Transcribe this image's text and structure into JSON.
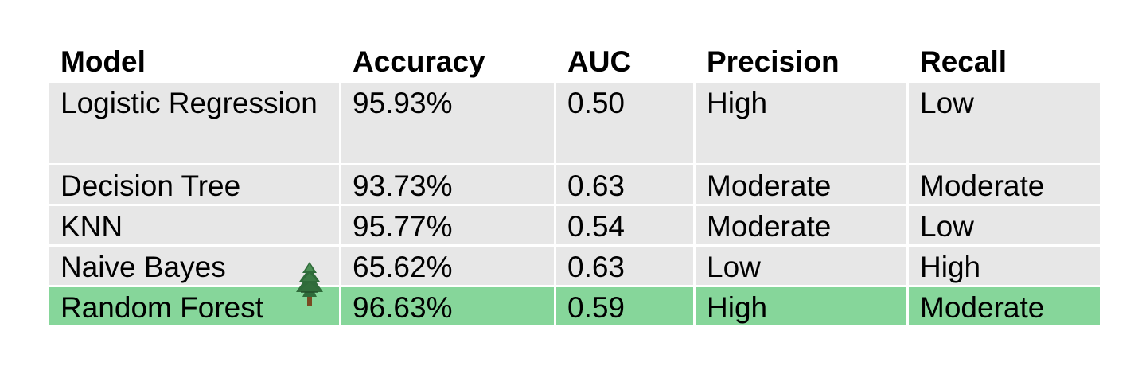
{
  "table": {
    "headers": [
      "Model",
      "Accuracy",
      "AUC",
      "Precision",
      "Recall"
    ],
    "rows": [
      {
        "model": "Logistic Regression",
        "accuracy": "95.93%",
        "auc": "0.50",
        "precision": "High",
        "recall": "Low"
      },
      {
        "model": "Decision Tree",
        "accuracy": "93.73%",
        "auc": "0.63",
        "precision": "Moderate",
        "recall": "Moderate"
      },
      {
        "model": "KNN",
        "accuracy": "95.77%",
        "auc": "0.54",
        "precision": "Moderate",
        "recall": "Low"
      },
      {
        "model": "Naive Bayes",
        "accuracy": "65.62%",
        "auc": "0.63",
        "precision": "Low",
        "recall": "High"
      },
      {
        "model": "Random Forest",
        "accuracy": "96.63%",
        "auc": "0.59",
        "precision": "High",
        "recall": "Moderate",
        "highlighted": true
      }
    ]
  },
  "colors": {
    "row_background": "#e7e7e7",
    "highlight_background": "#86d69a"
  },
  "icons": {
    "highlight_marker": "evergreen-tree-icon"
  }
}
